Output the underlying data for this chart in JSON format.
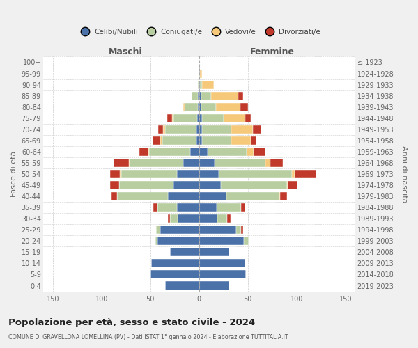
{
  "age_groups": [
    "0-4",
    "5-9",
    "10-14",
    "15-19",
    "20-24",
    "25-29",
    "30-34",
    "35-39",
    "40-44",
    "45-49",
    "50-54",
    "55-59",
    "60-64",
    "65-69",
    "70-74",
    "75-79",
    "80-84",
    "85-89",
    "90-94",
    "95-99",
    "100+"
  ],
  "birth_years": [
    "2019-2023",
    "2014-2018",
    "2009-2013",
    "2004-2008",
    "1999-2003",
    "1994-1998",
    "1989-1993",
    "1984-1988",
    "1979-1983",
    "1974-1978",
    "1969-1973",
    "1964-1968",
    "1959-1963",
    "1954-1958",
    "1949-1953",
    "1944-1948",
    "1939-1943",
    "1934-1938",
    "1929-1933",
    "1924-1928",
    "≤ 1923"
  ],
  "maschi": {
    "celibi": [
      35,
      50,
      49,
      30,
      43,
      40,
      22,
      23,
      32,
      26,
      23,
      16,
      9,
      3,
      3,
      2,
      1,
      1,
      0,
      0,
      0
    ],
    "coniugati": [
      0,
      0,
      0,
      0,
      2,
      4,
      8,
      20,
      52,
      56,
      57,
      55,
      42,
      35,
      32,
      24,
      14,
      7,
      1,
      0,
      0
    ],
    "vedovi": [
      0,
      0,
      0,
      0,
      0,
      0,
      0,
      0,
      0,
      0,
      1,
      1,
      1,
      2,
      2,
      2,
      1,
      0,
      0,
      0,
      0
    ],
    "divorziati": [
      0,
      0,
      0,
      0,
      0,
      0,
      2,
      4,
      6,
      9,
      10,
      16,
      9,
      8,
      5,
      5,
      1,
      0,
      0,
      0,
      0
    ]
  },
  "femmine": {
    "nubili": [
      31,
      48,
      47,
      31,
      46,
      38,
      19,
      18,
      28,
      22,
      20,
      16,
      9,
      3,
      3,
      3,
      2,
      2,
      1,
      0,
      0
    ],
    "coniugate": [
      0,
      0,
      0,
      0,
      5,
      5,
      10,
      25,
      54,
      68,
      75,
      52,
      40,
      30,
      30,
      22,
      15,
      10,
      2,
      1,
      0
    ],
    "vedove": [
      0,
      0,
      0,
      0,
      0,
      0,
      0,
      0,
      1,
      1,
      3,
      5,
      7,
      20,
      22,
      22,
      25,
      28,
      12,
      2,
      0
    ],
    "divorziate": [
      0,
      0,
      0,
      0,
      0,
      2,
      3,
      4,
      7,
      10,
      22,
      13,
      12,
      6,
      9,
      6,
      8,
      5,
      0,
      0,
      0
    ]
  },
  "colors": {
    "celibi": "#4a72a8",
    "coniugati": "#b8cda0",
    "vedovi": "#f5c87a",
    "divorziati": "#c0392b"
  },
  "xlim": 160,
  "title": "Popolazione per età, sesso e stato civile - 2024",
  "subtitle": "COMUNE DI GRAVELLONA LOMELLINA (PV) - Dati ISTAT 1° gennaio 2024 - Elaborazione TUTTITALIA.IT",
  "ylabel_left": "Fasce di età",
  "ylabel_right": "Anni di nascita",
  "legend_labels": [
    "Celibi/Nubili",
    "Coniugati/e",
    "Vedovi/e",
    "Divorziati/e"
  ],
  "maschi_label": "Maschi",
  "femmine_label": "Femmine",
  "bg_color": "#f0f0f0",
  "plot_bg": "#ffffff",
  "bar_height": 0.75
}
